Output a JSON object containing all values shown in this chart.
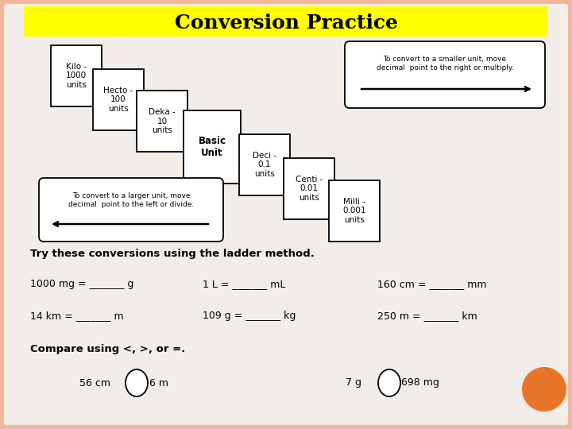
{
  "title": "Conversion Practice",
  "title_bg": "#ffff00",
  "title_fontsize": 18,
  "bg_color": "#f0b898",
  "inner_bg": "#f2ede8",
  "arrow_right_text": "To convert to a smaller unit, move\ndecimal  point to the right or multiply.",
  "arrow_left_text": "To convert to a larger unit, move\ndecimal  point to the left or divide.",
  "instruction": "Try these conversions using the ladder method.",
  "conversions_row1": [
    "1000 mg = _______ g",
    "1 L = _______ mL",
    "160 cm = _______ mm"
  ],
  "conversions_row2": [
    "14 km = _______ m",
    "109 g = _______ kg",
    "250 m = _______ km"
  ],
  "compare_label": "Compare using <, >, or =.",
  "compare_left_1": "56 cm",
  "compare_right_1": "6 m",
  "compare_left_2": "7 g",
  "compare_right_2": "698 mg",
  "orange_color": "#e8762a"
}
